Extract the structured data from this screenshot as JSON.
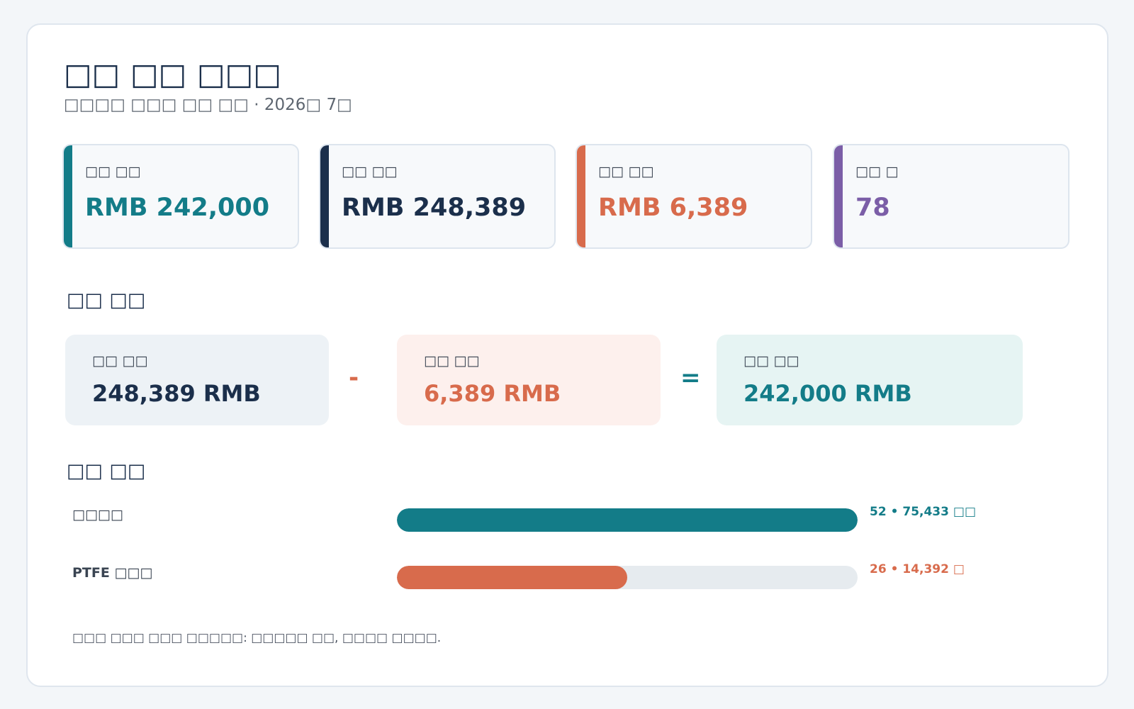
{
  "header": {
    "title": "□□ □□ □□□",
    "subtitle": "□□□□ □□□ □□ □□ · 2026□ 7□"
  },
  "kpis": [
    {
      "label": "□□ □□",
      "value": "RMB 242,000",
      "color": "#137c88"
    },
    {
      "label": "□□ □□",
      "value": "RMB 248,389",
      "color": "#1b2f4b"
    },
    {
      "label": "□□ □□",
      "value": "RMB 6,389",
      "color": "#d86b4c"
    },
    {
      "label": "□□ □",
      "value": "78",
      "color": "#7b5ea7"
    }
  ],
  "calculation": {
    "section_title": "□□ □□",
    "left": {
      "label": "□□ □□",
      "value": "248,389 RMB",
      "color": "#1b2f4b",
      "background": "#edf2f6"
    },
    "minus_symbol": "-",
    "middle": {
      "label": "□□ □□",
      "value": "6,389 RMB",
      "color": "#d86b4c",
      "background": "#fdf0ed"
    },
    "equals_symbol": "=",
    "right": {
      "label": "□□ □□",
      "value": "242,000 RMB",
      "color": "#137c88",
      "background": "#e6f4f3"
    }
  },
  "distribution": {
    "section_title": "□□ □□",
    "items": [
      {
        "label": "□□□□",
        "value_text": "52 • 75,433 □□",
        "fraction": 1.0,
        "color": "#137c88"
      },
      {
        "label": "PTFE □□□",
        "value_text": "26 • 14,392 □",
        "fraction": 0.5,
        "color": "#d86b4c"
      }
    ]
  },
  "footnote": "□□□ □□□ □□□ □□□□□: □□□□□ □□, □□□□ □□□□."
}
